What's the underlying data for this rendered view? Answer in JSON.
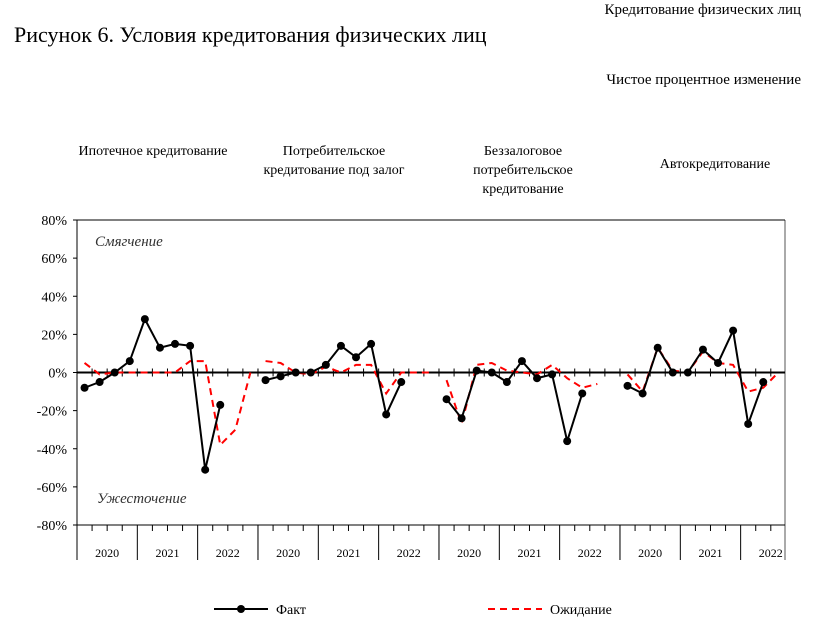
{
  "header": {
    "source": "Кредитование физических лиц",
    "title": "Рисунок 6. Условия кредитования физических лиц",
    "unit": "Чистое процентное изменение"
  },
  "chart_data": {
    "type": "line",
    "ylim": [
      -80,
      80
    ],
    "yticks": [
      "80%",
      "60%",
      "40%",
      "20%",
      "0%",
      "-20%",
      "-40%",
      "-60%",
      "-80%"
    ],
    "ytick_values": [
      80,
      60,
      40,
      20,
      0,
      -20,
      -40,
      -60,
      -80
    ],
    "annotations": {
      "top": "Смягчение",
      "bottom": "Ужесточение"
    },
    "years": [
      "2020",
      "2021",
      "2022"
    ],
    "legend": {
      "fact": "Факт",
      "expect": "Ожидание",
      "placement": "bottom"
    },
    "colors": {
      "fact": "#000000",
      "expect": "#ff0000"
    },
    "panels": [
      {
        "title": "Ипотечное кредитование",
        "fact": [
          -8,
          -5,
          0,
          6,
          28,
          13,
          15,
          14,
          -51,
          -17
        ],
        "expect": [
          5,
          -1,
          0,
          0,
          0,
          0,
          0,
          6,
          6,
          -38,
          -30,
          0
        ]
      },
      {
        "title": "Потребительское кредитование под залог",
        "fact": [
          -4,
          -2,
          0,
          0,
          4,
          14,
          8,
          15,
          -22,
          -5
        ],
        "expect": [
          6,
          5,
          0,
          -1,
          3,
          0,
          4,
          4,
          -11,
          0,
          0,
          0
        ]
      },
      {
        "title": "Беззалоговое потребительское кредитование",
        "fact": [
          -14,
          -24,
          1,
          0,
          -5,
          6,
          -3,
          -1,
          -36,
          -11
        ],
        "expect": [
          -4,
          -27,
          4,
          5,
          1,
          0,
          -1,
          4,
          -3,
          -8,
          -6
        ]
      },
      {
        "title": "Автокредитование",
        "fact": [
          -7,
          -11,
          13,
          0,
          0,
          12,
          5,
          22,
          -27,
          -5
        ],
        "expect": [
          -1,
          -10,
          13,
          1,
          0,
          11,
          5,
          4,
          -10,
          -8,
          0
        ]
      }
    ]
  }
}
